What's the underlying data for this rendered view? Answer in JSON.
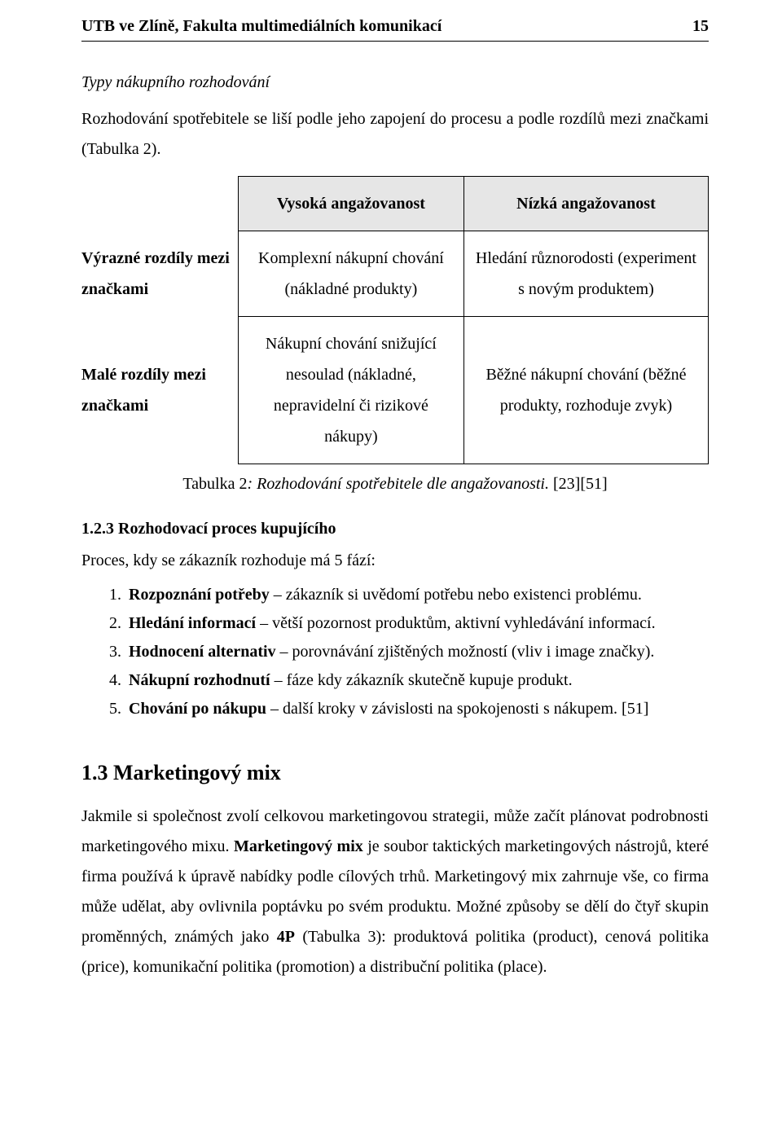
{
  "header": {
    "left": "UTB ve Zlíně, Fakulta multimediálních komunikací",
    "pageNumber": "15"
  },
  "section": {
    "typTitle": "Typy nákupního rozhodování",
    "introPara": "Rozhodování spotřebitele se liší podle jeho zapojení do procesu a podle rozdílů mezi značkami (Tabulka 2)."
  },
  "table": {
    "colHighA": "Vysoká angažovanost",
    "colHighB": "Nízká angažovanost",
    "row1Head": "Výrazné rozdíly mezi značkami",
    "row1A": "Komplexní nákupní chování (nákladné produkty)",
    "row1B": "Hledání různorodosti (experiment s novým produktem)",
    "row2Head": "Malé rozdíly mezi značkami",
    "row2A": "Nákupní chování snižující nesoulad (nákladné, nepravidelní či rizikové nákupy)",
    "row2B": "Běžné nákupní chování (běžné produkty, rozhoduje zvyk)",
    "captionLabel": "Tabulka 2",
    "captionTitle": ": Rozhodování spotřebitele dle angažovanosti.",
    "captionRef": " [23][51]"
  },
  "decision": {
    "numTitle": "1.2.3   Rozhodovací proces kupujícího",
    "leadPara": "Proces, kdy se zákazník rozhoduje má 5 fází:",
    "items": [
      {
        "bold": "Rozpoznání potřeby",
        "rest": " – zákazník si uvědomí potřebu nebo existenci problému."
      },
      {
        "bold": "Hledání informací",
        "rest": " – větší pozornost produktům, aktivní vyhledávání informací."
      },
      {
        "bold": "Hodnocení alternativ",
        "rest": " – porovnávání zjištěných možností (vliv i image značky)."
      },
      {
        "bold": "Nákupní rozhodnutí",
        "rest": " – fáze kdy zákazník skutečně kupuje produkt."
      },
      {
        "bold": "Chování po nákupu",
        "rest": " – další kroky v závislosti na spokojenosti s nákupem. [51]"
      }
    ]
  },
  "mix": {
    "h2": "1.3  Marketingový mix",
    "paraPrefix": "Jakmile si společnost zvolí celkovou marketingovou strategii, může začít plánovat podrobnosti marketingového mixu. ",
    "boldTerm": "Marketingový mix",
    "paraMid": " je soubor taktických marketingových nástrojů, které firma používá k úpravě nabídky podle cílových trhů. Marketingový mix zahrnuje vše, co firma může udělat, aby ovlivnila poptávku po svém produktu. Možné způsoby se dělí do čtyř skupin proměnných, známých jako ",
    "bold4P": "4P",
    "paraSuffix": " (Tabulka 3): produktová politika (product), cenová politika (price), komunikační politika (promotion) a distribuční politika (place)."
  }
}
